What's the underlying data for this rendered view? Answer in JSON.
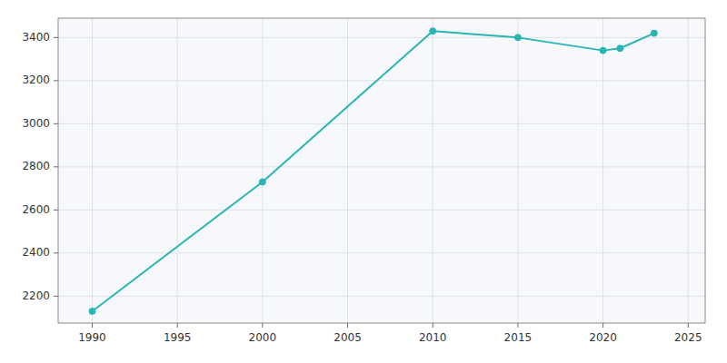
{
  "chart_data": {
    "type": "line",
    "x": [
      1990,
      2000,
      2010,
      2015,
      2020,
      2021,
      2023
    ],
    "values": [
      2130,
      2730,
      3430,
      3400,
      3340,
      3350,
      3420
    ],
    "color": "#2ab5b5",
    "marker": "circle",
    "xlim": [
      1988,
      2026
    ],
    "ylim": [
      2075,
      3490
    ],
    "xticks": [
      1990,
      1995,
      2000,
      2005,
      2010,
      2015,
      2020,
      2025
    ],
    "yticks": [
      2200,
      2400,
      2600,
      2800,
      3000,
      3200,
      3400
    ],
    "grid": true
  }
}
